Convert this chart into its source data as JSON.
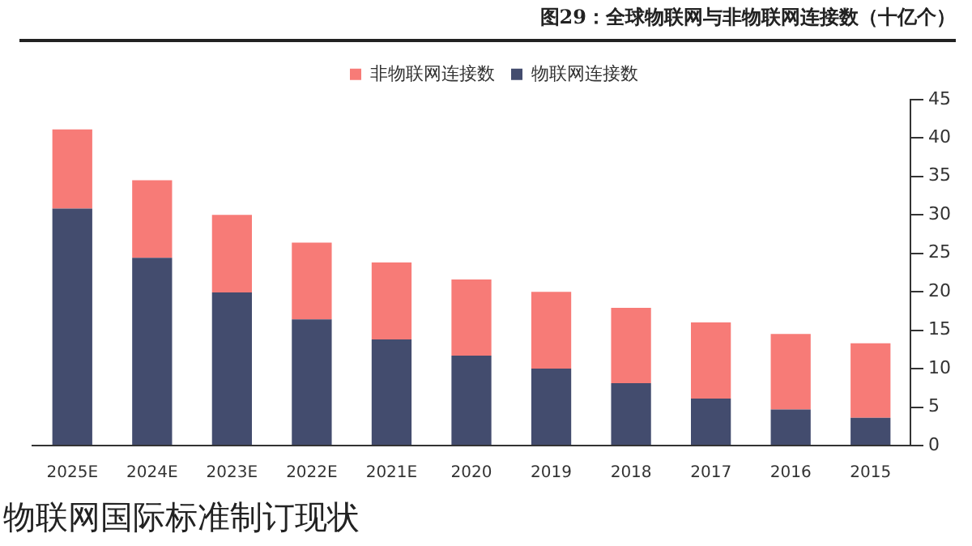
{
  "chart_data": {
    "type": "bar",
    "title": "图29：全球物联网与非物联网连接数（十亿个）",
    "categories": [
      "2025E",
      "2024E",
      "2023E",
      "2022E",
      "2021E",
      "2020",
      "2019",
      "2018",
      "2017",
      "2016",
      "2015"
    ],
    "series": [
      {
        "name": "物联网连接数",
        "color": "#434c6e",
        "values": [
          30.8,
          24.4,
          19.9,
          16.4,
          13.8,
          11.7,
          10.0,
          8.1,
          6.1,
          4.7,
          3.6
        ]
      },
      {
        "name": "非物联网连接数",
        "color": "#f77b77",
        "values": [
          10.3,
          10.1,
          10.1,
          10.0,
          10.0,
          9.9,
          10.0,
          9.8,
          9.9,
          9.8,
          9.7
        ]
      }
    ],
    "stacked": true,
    "ylim": [
      0,
      45
    ],
    "yticks": [
      0,
      5,
      10,
      15,
      20,
      25,
      30,
      35,
      40,
      45
    ],
    "grid": false,
    "legend": "top",
    "annotations": [
      "物联网国际标准制订现状"
    ]
  }
}
